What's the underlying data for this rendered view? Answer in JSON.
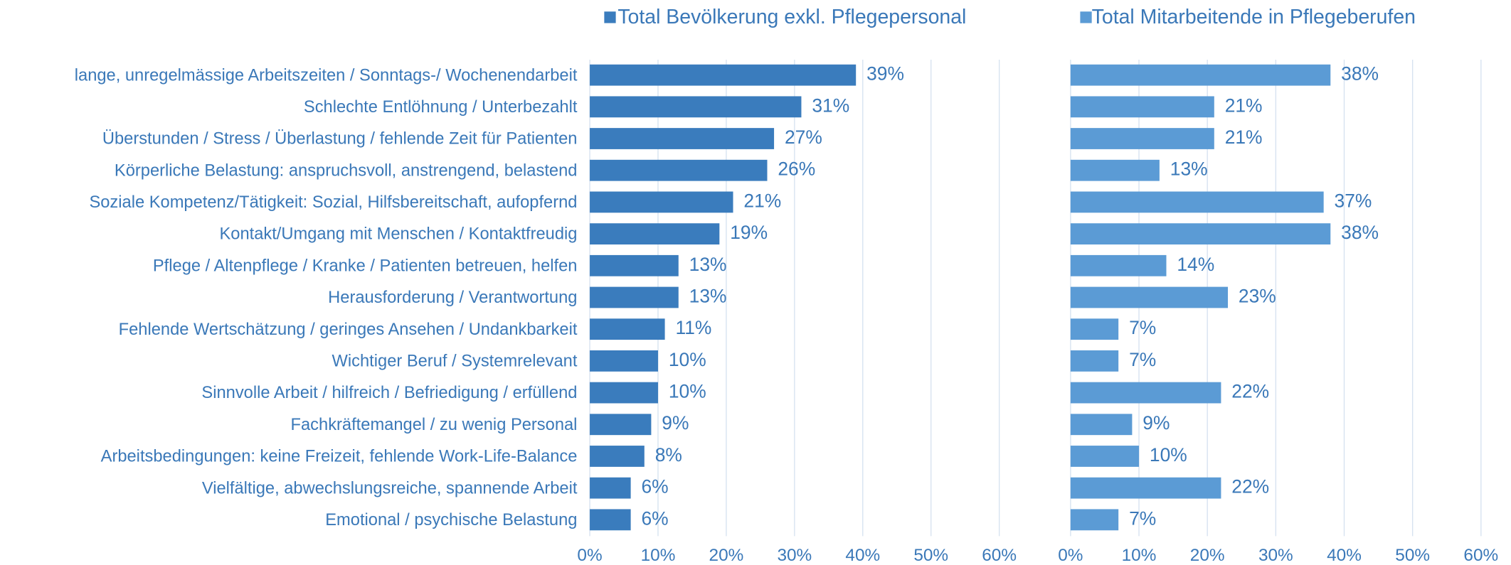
{
  "chart_data": {
    "type": "bar",
    "categories": [
      "lange, unregelmässige Arbeitszeiten / Sonntags-/ Wochenendarbeit",
      "Schlechte Entlöhnung / Unterbezahlt",
      "Überstunden / Stress / Überlastung / fehlende Zeit für Patienten",
      "Körperliche Belastung: anspruchsvoll, anstrengend, belastend",
      "Soziale Kompetenz/Tätigkeit: Sozial, Hilfsbereitschaft, aufopfernd",
      "Kontakt/Umgang mit Menschen / Kontaktfreudig",
      "Pflege / Altenpflege / Kranke / Patienten betreuen, helfen",
      "Herausforderung / Verantwortung",
      "Fehlende Wertschätzung / geringes Ansehen / Undankbarkeit",
      "Wichtiger Beruf / Systemrelevant",
      "Sinnvolle Arbeit / hilfreich / Befriedigung / erfüllend",
      "Fachkräftemangel / zu wenig Personal",
      "Arbeitsbedingungen: keine Freizeit, fehlende Work-Life-Balance",
      "Vielfältige, abwechslungsreiche, spannende Arbeit",
      "Emotional / psychische Belastung"
    ],
    "series": [
      {
        "name": "Total Bevölkerung exkl. Pflegepersonal",
        "color": "#3a7cbd",
        "values": [
          39,
          31,
          27,
          26,
          21,
          19,
          13,
          13,
          11,
          10,
          10,
          9,
          8,
          6,
          6
        ],
        "value_labels": [
          "39%",
          "31%",
          "27%",
          "26%",
          "21%",
          "19%",
          "13%",
          "13%",
          "11%",
          "10%",
          "10%",
          "9%",
          "8%",
          "6%",
          "6%"
        ]
      },
      {
        "name": "Total Mitarbeitende in Pflegeberufen",
        "color": "#5b9bd5",
        "values": [
          38,
          21,
          21,
          13,
          37,
          38,
          14,
          23,
          7,
          7,
          22,
          9,
          10,
          22,
          7
        ],
        "value_labels": [
          "38%",
          "21%",
          "21%",
          "13%",
          "37%",
          "38%",
          "14%",
          "23%",
          "7%",
          "7%",
          "22%",
          "9%",
          "10%",
          "22%",
          "7%"
        ]
      }
    ],
    "xlim": [
      0,
      60
    ],
    "xticks": [
      {
        "value": 0,
        "label": "0%"
      },
      {
        "value": 10,
        "label": "10%"
      },
      {
        "value": 20,
        "label": "20%"
      },
      {
        "value": 30,
        "label": "30%"
      },
      {
        "value": 40,
        "label": "40%"
      },
      {
        "value": 50,
        "label": "50%"
      },
      {
        "value": 60,
        "label": "60%"
      }
    ],
    "grid": true
  }
}
